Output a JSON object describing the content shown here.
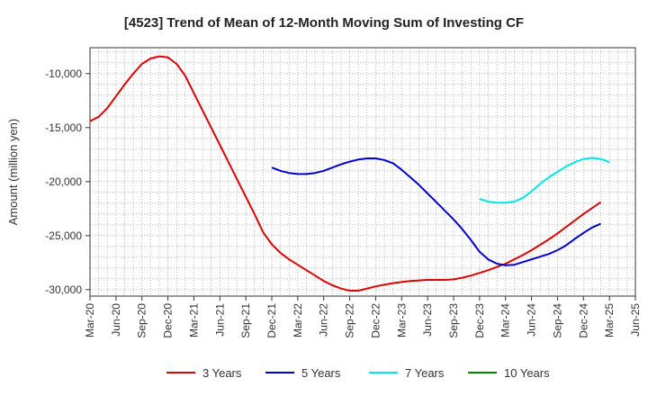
{
  "chart_data": {
    "type": "line",
    "title": "[4523]  Trend of Mean of 12-Month Moving Sum of Investing CF",
    "xlabel": "",
    "ylabel": "Amount (million yen)",
    "x_ticks": [
      "Mar-20",
      "Jun-20",
      "Sep-20",
      "Dec-20",
      "Mar-21",
      "Jun-21",
      "Sep-21",
      "Dec-21",
      "Mar-22",
      "Jun-22",
      "Sep-22",
      "Dec-22",
      "Mar-23",
      "Jun-23",
      "Sep-23",
      "Dec-23",
      "Mar-24",
      "Jun-24",
      "Sep-24",
      "Dec-24",
      "Mar-25",
      "Jun-25"
    ],
    "y_ticks": [
      "-10,000",
      "-15,000",
      "-20,000",
      "-25,000",
      "-30,000"
    ],
    "y_tick_values": [
      -10000,
      -15000,
      -20000,
      -25000,
      -30000
    ],
    "ylim": [
      -30600,
      -7600
    ],
    "grid": true,
    "legend_position": "bottom",
    "series": [
      {
        "name": "3 Years",
        "color": "#dd0000",
        "start_index": 0,
        "values": [
          -14400,
          -14000,
          -13200,
          -12100,
          -11000,
          -10000,
          -9100,
          -8600,
          -8400,
          -8500,
          -9100,
          -10200,
          -11800,
          -13400,
          -15000,
          -16600,
          -18200,
          -19800,
          -21400,
          -23000,
          -24700,
          -25800,
          -26600,
          -27200,
          -27700,
          -28200,
          -28700,
          -29200,
          -29600,
          -29900,
          -30100,
          -30100,
          -29900,
          -29700,
          -29550,
          -29400,
          -29300,
          -29200,
          -29150,
          -29100,
          -29100,
          -29100,
          -29050,
          -28900,
          -28700,
          -28450,
          -28200,
          -27900,
          -27600,
          -27200,
          -26800,
          -26350,
          -25850,
          -25350,
          -24800,
          -24200,
          -23600,
          -23000,
          -22450,
          -21900
        ]
      },
      {
        "name": "5 Years",
        "color": "#0000cc",
        "start_index": 21,
        "values": [
          -18700,
          -19000,
          -19200,
          -19300,
          -19300,
          -19200,
          -19000,
          -18700,
          -18400,
          -18150,
          -17950,
          -17850,
          -17850,
          -18000,
          -18300,
          -18900,
          -19600,
          -20300,
          -21100,
          -21900,
          -22700,
          -23500,
          -24400,
          -25400,
          -26500,
          -27200,
          -27600,
          -27750,
          -27700,
          -27450,
          -27200,
          -26950,
          -26700,
          -26350,
          -25900,
          -25300,
          -24750,
          -24250,
          -23900
        ]
      },
      {
        "name": "7 Years",
        "color": "#00e5e5",
        "start_index": 45,
        "values": [
          -21600,
          -21850,
          -21950,
          -21950,
          -21850,
          -21500,
          -20900,
          -20200,
          -19600,
          -19100,
          -18600,
          -18200,
          -17900,
          -17800,
          -17900,
          -18200
        ]
      },
      {
        "name": "10 Years",
        "color": "#008800",
        "start_index": 0,
        "values": []
      }
    ]
  }
}
